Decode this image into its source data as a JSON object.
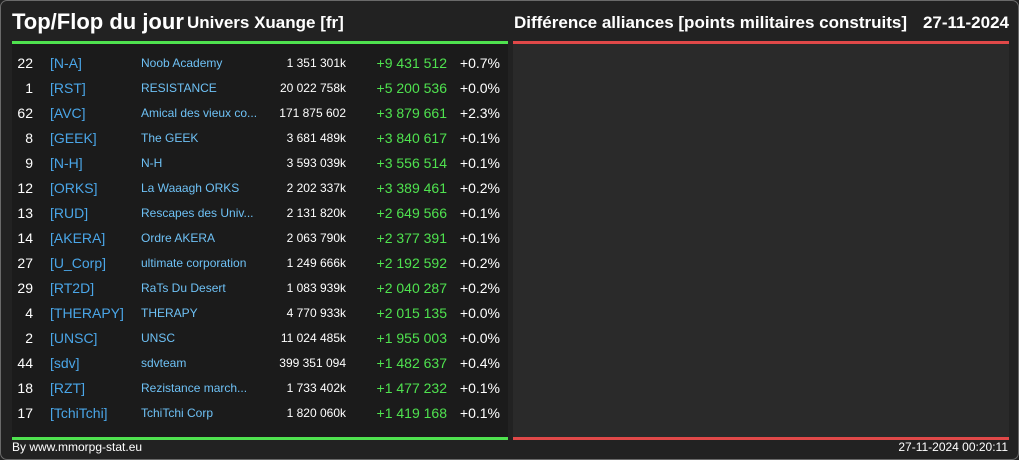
{
  "header": {
    "title": "Top/Flop du jour",
    "universe": "Univers Xuange [fr]",
    "subtitle": "Différence alliances [points militaires construits]",
    "date": "27-11-2024"
  },
  "colors": {
    "top_accent": "#4fe24f",
    "flop_accent": "#e04848",
    "tag": "#4aa6e8",
    "name": "#6ec1f5",
    "background": "#222222"
  },
  "top_rows": [
    {
      "rank": "22",
      "tag": "[N-A]",
      "name": "Noob Academy",
      "total": "1 351 301k",
      "diff": "+9 431 512",
      "pct": "+0.7%"
    },
    {
      "rank": "1",
      "tag": "[RST]",
      "name": "RESISTANCE",
      "total": "20 022 758k",
      "diff": "+5 200 536",
      "pct": "+0.0%"
    },
    {
      "rank": "62",
      "tag": "[AVC]",
      "name": "Amical des vieux co...",
      "total": "171 875 602",
      "diff": "+3 879 661",
      "pct": "+2.3%"
    },
    {
      "rank": "8",
      "tag": "[GEEK]",
      "name": "The GEEK",
      "total": "3 681 489k",
      "diff": "+3 840 617",
      "pct": "+0.1%"
    },
    {
      "rank": "9",
      "tag": "[N-H]",
      "name": "N-H",
      "total": "3 593 039k",
      "diff": "+3 556 514",
      "pct": "+0.1%"
    },
    {
      "rank": "12",
      "tag": "[ORKS]",
      "name": "La Waaagh ORKS",
      "total": "2 202 337k",
      "diff": "+3 389 461",
      "pct": "+0.2%"
    },
    {
      "rank": "13",
      "tag": "[RUD]",
      "name": "Rescapes des Univ...",
      "total": "2 131 820k",
      "diff": "+2 649 566",
      "pct": "+0.1%"
    },
    {
      "rank": "14",
      "tag": "[AKERA]",
      "name": "Ordre AKERA",
      "total": "2 063 790k",
      "diff": "+2 377 391",
      "pct": "+0.1%"
    },
    {
      "rank": "27",
      "tag": "[U_Corp]",
      "name": "ultimate corporation",
      "total": "1 249 666k",
      "diff": "+2 192 592",
      "pct": "+0.2%"
    },
    {
      "rank": "29",
      "tag": "[RT2D]",
      "name": "RaTs Du Desert",
      "total": "1 083 939k",
      "diff": "+2 040 287",
      "pct": "+0.2%"
    },
    {
      "rank": "4",
      "tag": "[THERAPY]",
      "name": "THERAPY",
      "total": "4 770 933k",
      "diff": "+2 015 135",
      "pct": "+0.0%"
    },
    {
      "rank": "2",
      "tag": "[UNSC]",
      "name": "UNSC",
      "total": "11 024 485k",
      "diff": "+1 955 003",
      "pct": "+0.0%"
    },
    {
      "rank": "44",
      "tag": "[sdv]",
      "name": "sdvteam",
      "total": "399 351 094",
      "diff": "+1 482 637",
      "pct": "+0.4%"
    },
    {
      "rank": "18",
      "tag": "[RZT]",
      "name": "Rezistance march...",
      "total": "1 733 402k",
      "diff": "+1 477 232",
      "pct": "+0.1%"
    },
    {
      "rank": "17",
      "tag": "[TchiTchi]",
      "name": "TchiTchi Corp",
      "total": "1 820 060k",
      "diff": "+1 419 168",
      "pct": "+0.1%"
    }
  ],
  "flop_rows": [],
  "footer": {
    "source": "By www.mmorpg-stat.eu",
    "timestamp": "27-11-2024 00:20:11"
  }
}
